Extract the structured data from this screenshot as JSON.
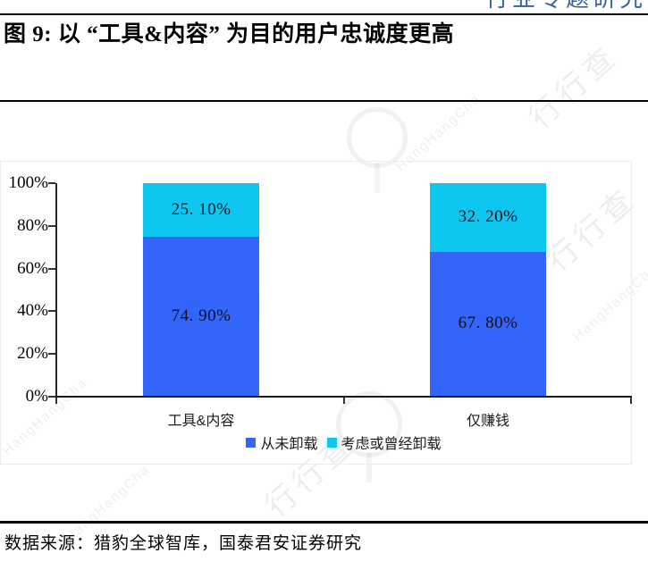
{
  "header": {
    "section_label": "行业专题研究"
  },
  "figure": {
    "title": "图 9: 以 “工具&内容” 为目的用户忠诚度更高",
    "source": "数据来源：猎豹全球智库，国泰君安证券研究"
  },
  "watermark": {
    "text_cn": "行行查",
    "text_en": "HangHangCha"
  },
  "chart_data": {
    "type": "bar",
    "stacked": true,
    "title": "图 9: 以 “工具&内容” 为目的用户忠诚度更高",
    "categories": [
      "工具&内容",
      "仅赚钱"
    ],
    "series": [
      {
        "name": "从未卸载",
        "color": "#3365FA",
        "values": [
          74.9,
          67.8
        ],
        "display_labels": [
          "74. 90%",
          "67. 80%"
        ]
      },
      {
        "name": "考虑或曾经卸载",
        "color": "#0EC7F0",
        "values": [
          25.1,
          32.2
        ],
        "display_labels": [
          "25. 10%",
          "32. 20%"
        ]
      }
    ],
    "y_ticks": [
      "100%",
      "80%",
      "60%",
      "40%",
      "20%",
      "0%"
    ],
    "ylim": [
      0,
      100
    ],
    "grid": false,
    "legend_position": "bottom"
  }
}
